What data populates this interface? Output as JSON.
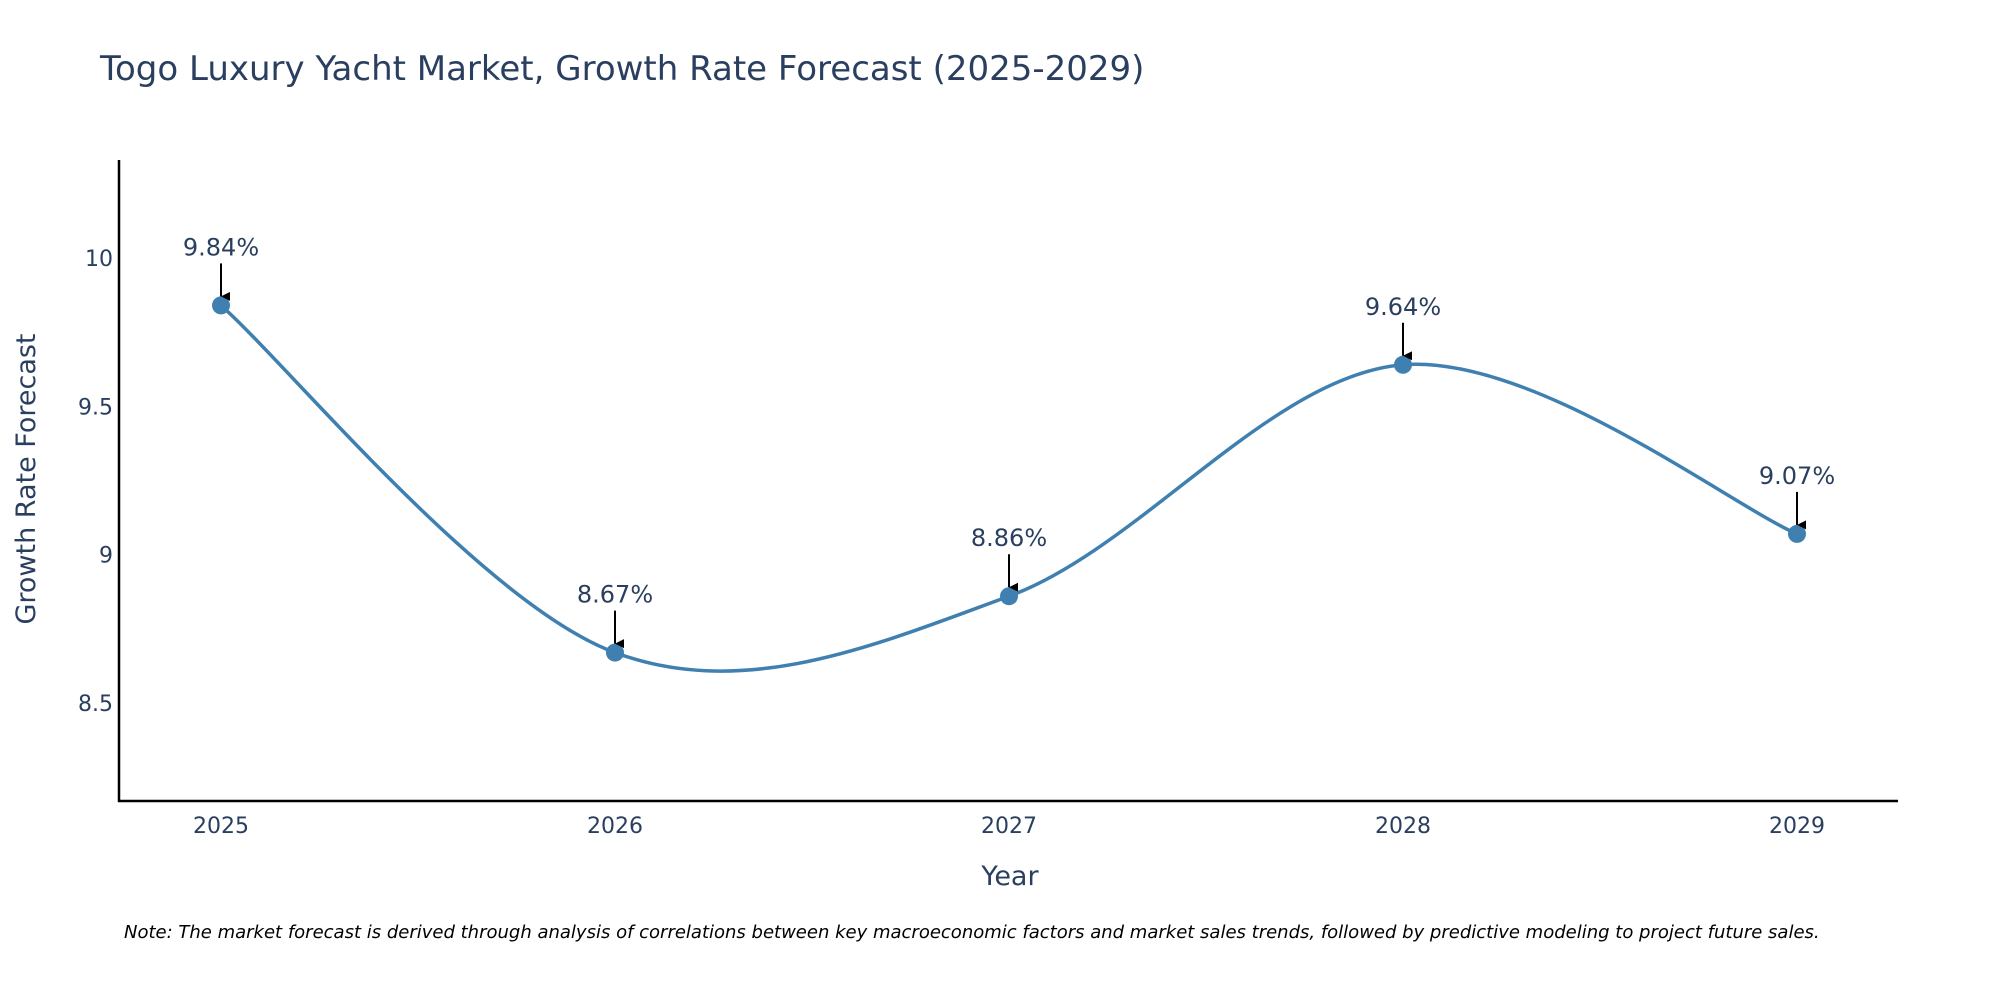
{
  "chart_data": {
    "type": "line",
    "title": "Togo Luxury Yacht Market, Growth Rate Forecast (2025-2029)",
    "xlabel": "Year",
    "ylabel": "Growth Rate Forecast",
    "categories": [
      "2025",
      "2026",
      "2027",
      "2028",
      "2029"
    ],
    "series": [
      {
        "name": "Growth Rate Forecast",
        "values": [
          9.84,
          8.67,
          8.86,
          9.64,
          9.07
        ]
      }
    ],
    "data_labels": [
      "9.84%",
      "8.67%",
      "8.86%",
      "9.64%",
      "9.07%"
    ],
    "ylim": [
      8.17,
      10.33
    ],
    "yticks": [
      8.5,
      9,
      9.5,
      10
    ],
    "ytick_labels": [
      "8.5",
      "9",
      "9.5",
      "10"
    ],
    "grid": false,
    "line_shape": "spline",
    "colors": {
      "line": "#3f80b0",
      "marker": "#3f80b0",
      "axis": "#000000",
      "text": "#2a3f5f"
    },
    "note": "Note: The market forecast is derived through analysis of correlations between key macroeconomic factors and market sales trends, followed by predictive modeling to project future sales."
  }
}
